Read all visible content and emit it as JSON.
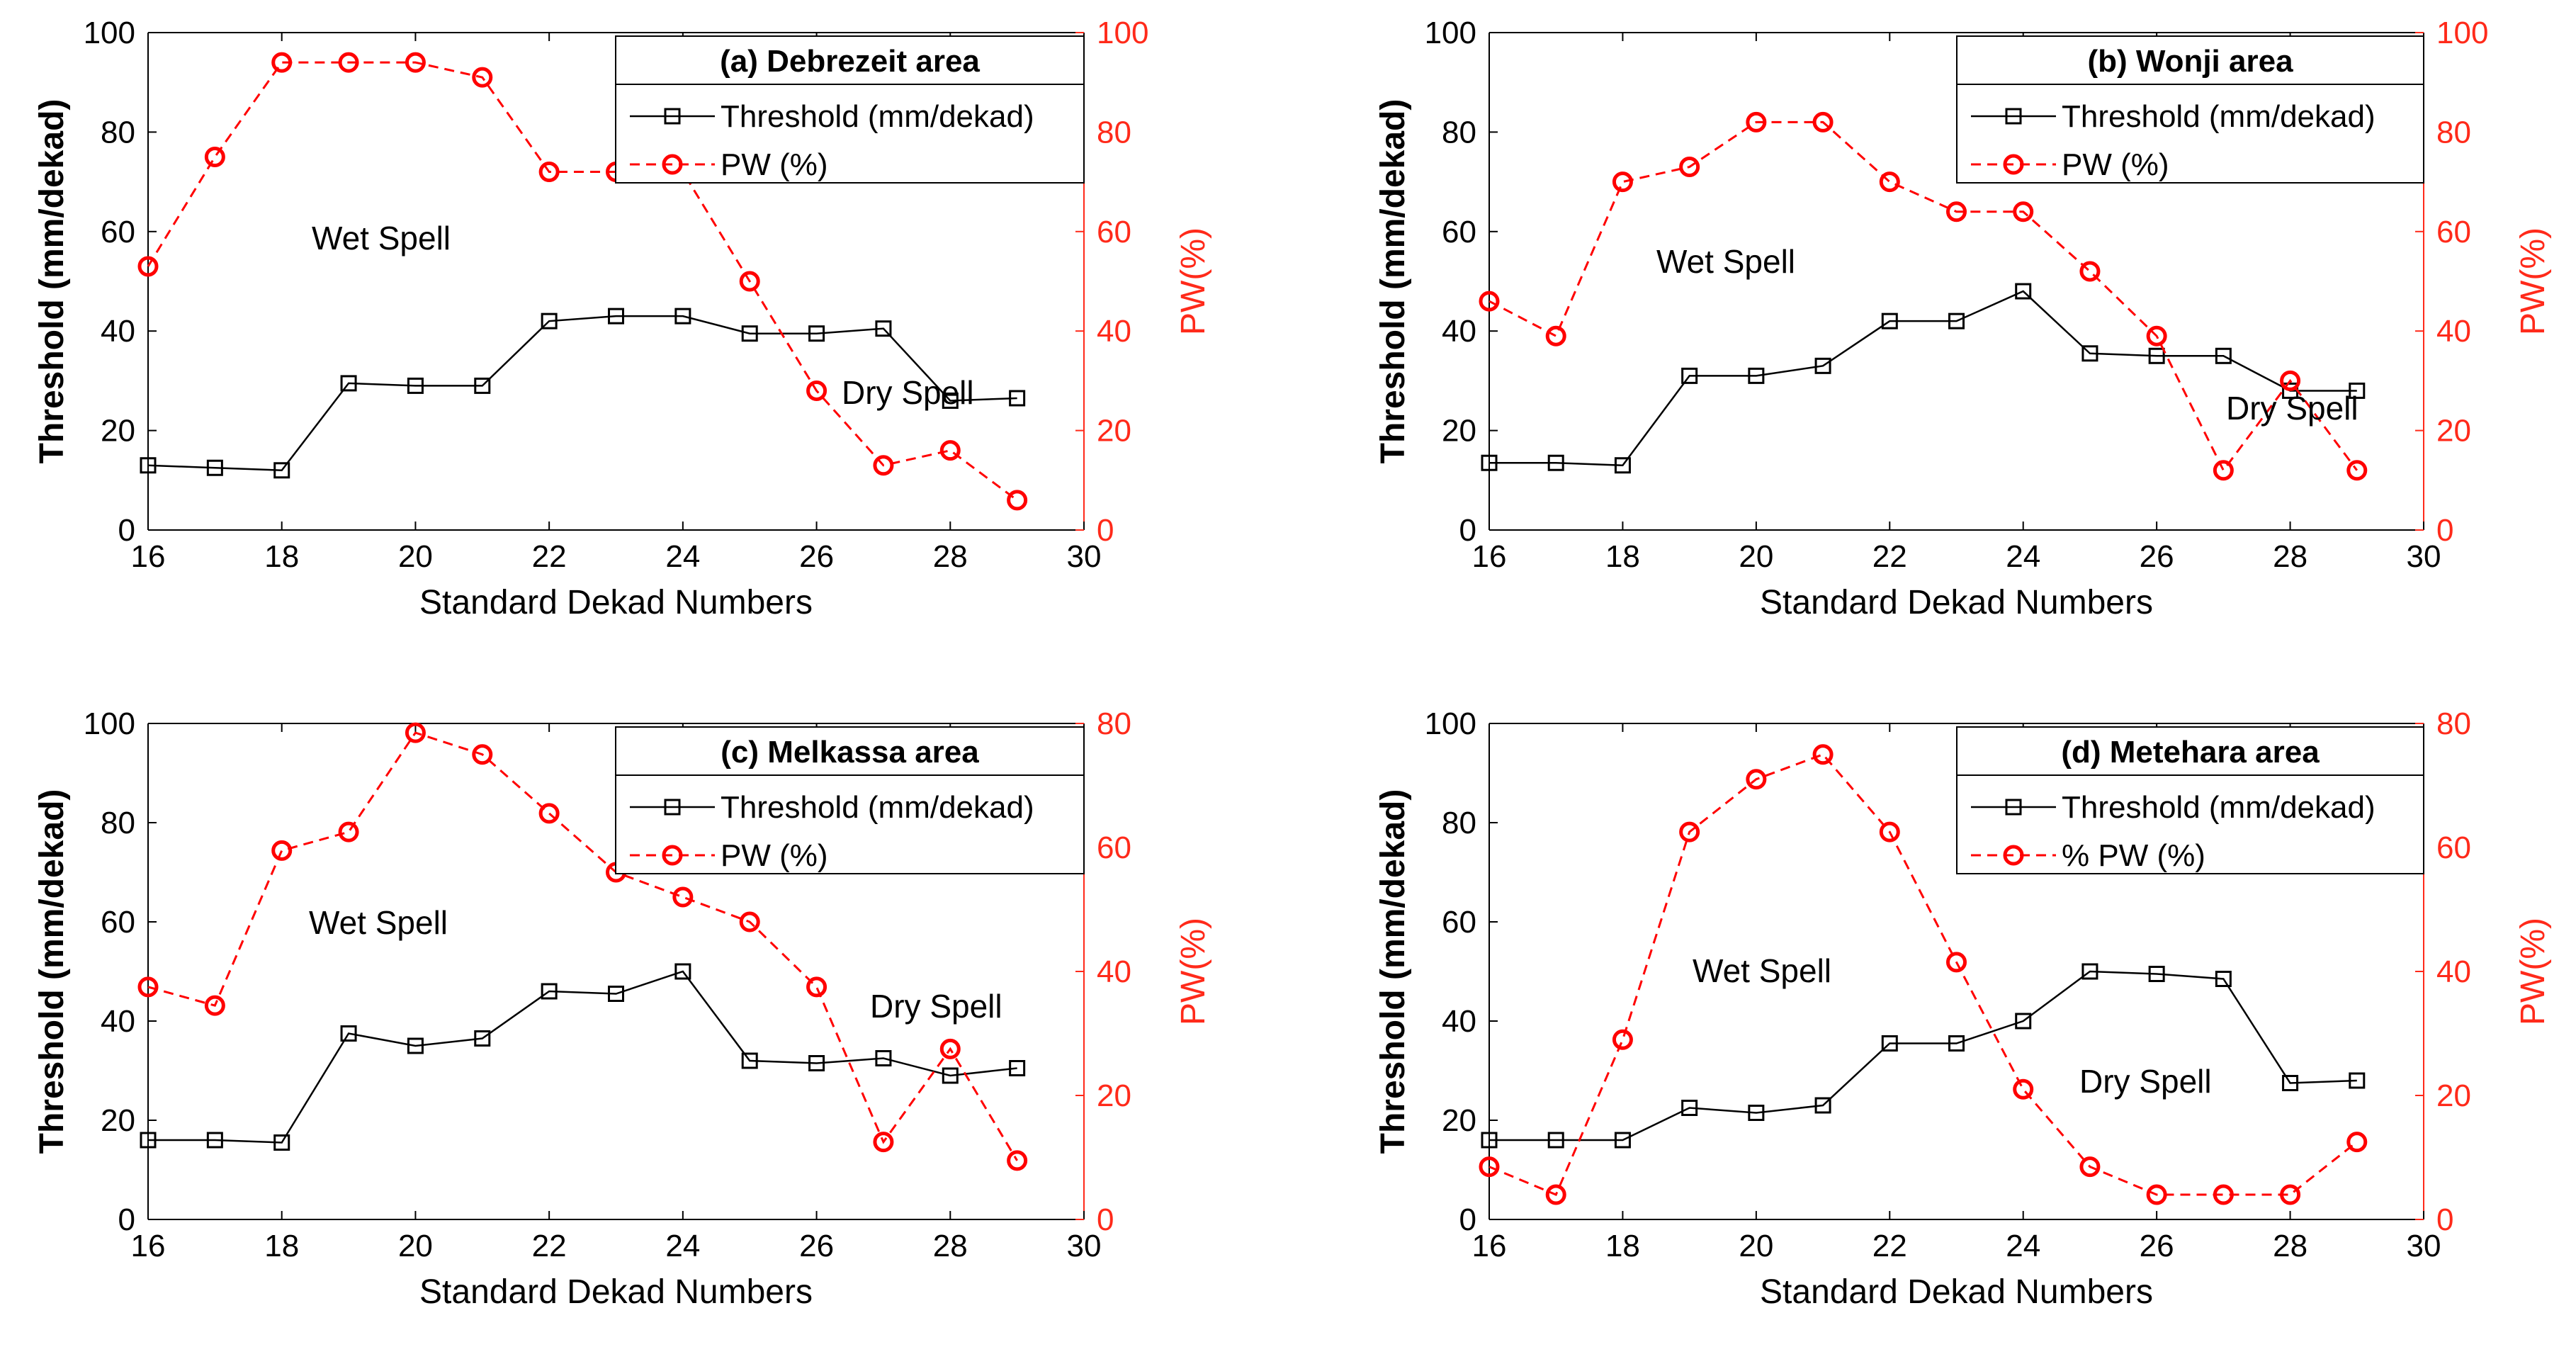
{
  "figure": {
    "colors": {
      "threshold": "#000000",
      "pw": "#ff0000",
      "axis_left": "#000000",
      "axis_right": "#ff2a1a"
    }
  },
  "chart_data": [
    {
      "panel": "a",
      "type": "line",
      "title": "(a) Debrezeit area",
      "xlabel": "Standard Dekad Numbers",
      "ylabel": "Threshold (mm/dekad)",
      "y2label": "PW(%)",
      "xlim": [
        16,
        30
      ],
      "xticks": [
        16,
        18,
        20,
        22,
        24,
        26,
        28,
        30
      ],
      "ylim": [
        0,
        100
      ],
      "yticks": [
        0,
        20,
        40,
        60,
        80,
        100
      ],
      "y2lim": [
        0,
        100
      ],
      "y2ticks": [
        0,
        20,
        40,
        60,
        80,
        100
      ],
      "grid": false,
      "legend_position": "top-right",
      "series": [
        {
          "name": "Threshold (mm/dekad)",
          "axis": "left",
          "color": "#000000",
          "marker": "square",
          "line": "solid",
          "x": [
            16,
            17,
            18,
            19,
            20,
            21,
            22,
            23,
            24,
            25,
            26,
            27,
            28,
            29
          ],
          "values": [
            13,
            12.5,
            12,
            29.5,
            29,
            29,
            42,
            43,
            43,
            39.5,
            39.5,
            40.5,
            26,
            26.5
          ]
        },
        {
          "name": "PW (%)",
          "axis": "right",
          "color": "#ff0000",
          "marker": "circle",
          "line": "dashed",
          "x": [
            16,
            17,
            18,
            19,
            20,
            21,
            22,
            23,
            24,
            25,
            26,
            27,
            28,
            29
          ],
          "values": [
            53,
            75,
            94,
            94,
            94,
            91,
            72,
            72,
            72,
            50,
            28,
            13,
            16,
            6
          ]
        }
      ],
      "annotations": [
        "Wet Spell",
        "Dry Spell"
      ]
    },
    {
      "panel": "b",
      "type": "line",
      "title": "(b) Wonji area",
      "xlabel": "Standard Dekad Numbers",
      "ylabel": "Threshold (mm/dekad)",
      "y2label": "PW(%)",
      "xlim": [
        16,
        30
      ],
      "xticks": [
        16,
        18,
        20,
        22,
        24,
        26,
        28,
        30
      ],
      "ylim": [
        0,
        100
      ],
      "yticks": [
        0,
        20,
        40,
        60,
        80,
        100
      ],
      "y2lim": [
        0,
        100
      ],
      "y2ticks": [
        0,
        20,
        40,
        60,
        80,
        100
      ],
      "grid": false,
      "legend_position": "top-right",
      "series": [
        {
          "name": "Threshold (mm/dekad)",
          "axis": "left",
          "color": "#000000",
          "marker": "square",
          "line": "solid",
          "x": [
            16,
            17,
            18,
            19,
            20,
            21,
            22,
            23,
            24,
            25,
            26,
            27,
            28,
            29
          ],
          "values": [
            13.5,
            13.5,
            13,
            31,
            31,
            33,
            42,
            42,
            48,
            35.5,
            35,
            35,
            28,
            28
          ]
        },
        {
          "name": "PW (%)",
          "axis": "right",
          "color": "#ff0000",
          "marker": "circle",
          "line": "dashed",
          "x": [
            16,
            17,
            18,
            19,
            20,
            21,
            22,
            23,
            24,
            25,
            26,
            27,
            28,
            29
          ],
          "values": [
            46,
            39,
            70,
            73,
            82,
            82,
            70,
            64,
            64,
            52,
            39,
            12,
            30,
            12
          ]
        }
      ],
      "annotations": [
        "Wet Spell",
        "Dry Spell"
      ]
    },
    {
      "panel": "c",
      "type": "line",
      "title": "(c) Melkassa area",
      "xlabel": "Standard Dekad Numbers",
      "ylabel": "Threshold (mm/dekad)",
      "y2label": "PW(%)",
      "xlim": [
        16,
        30
      ],
      "xticks": [
        16,
        18,
        20,
        22,
        24,
        26,
        28,
        30
      ],
      "ylim": [
        0,
        100
      ],
      "yticks": [
        0,
        20,
        40,
        60,
        80,
        100
      ],
      "y2lim": [
        0,
        80
      ],
      "y2ticks": [
        0,
        20,
        40,
        60,
        80
      ],
      "grid": false,
      "legend_position": "top-right",
      "series": [
        {
          "name": "Threshold (mm/dekad)",
          "axis": "left",
          "color": "#000000",
          "marker": "square",
          "line": "solid",
          "x": [
            16,
            17,
            18,
            19,
            20,
            21,
            22,
            23,
            24,
            25,
            26,
            27,
            28,
            29
          ],
          "values": [
            16,
            16,
            15.5,
            37.5,
            35,
            36.5,
            46,
            45.5,
            50,
            32,
            31.5,
            32.5,
            29,
            30.5
          ]
        },
        {
          "name": "PW (%)",
          "axis": "right",
          "color": "#ff0000",
          "marker": "circle",
          "line": "dashed",
          "x": [
            16,
            17,
            18,
            19,
            20,
            21,
            22,
            23,
            24,
            25,
            26,
            27,
            28,
            29
          ],
          "values": [
            37.5,
            34.5,
            59.5,
            62.5,
            78.5,
            75,
            65.5,
            56,
            52,
            48,
            37.5,
            12.5,
            27.5,
            9.5
          ]
        }
      ],
      "annotations": [
        "Wet Spell",
        "Dry Spell"
      ]
    },
    {
      "panel": "d",
      "type": "line",
      "title": "(d) Metehara area",
      "xlabel": "Standard Dekad Numbers",
      "ylabel": "Threshold (mm/dekad)",
      "y2label": "PW(%)",
      "xlim": [
        16,
        30
      ],
      "xticks": [
        16,
        18,
        20,
        22,
        24,
        26,
        28,
        30
      ],
      "ylim": [
        0,
        100
      ],
      "yticks": [
        0,
        20,
        40,
        60,
        80,
        100
      ],
      "y2lim": [
        0,
        80
      ],
      "y2ticks": [
        0,
        20,
        40,
        60,
        80
      ],
      "grid": false,
      "legend_position": "top-right",
      "series": [
        {
          "name": "Threshold (mm/dekad)",
          "axis": "left",
          "color": "#000000",
          "marker": "square",
          "line": "solid",
          "x": [
            16,
            17,
            18,
            19,
            20,
            21,
            22,
            23,
            24,
            25,
            26,
            27,
            28,
            29
          ],
          "values": [
            16,
            16,
            16,
            22.5,
            21.5,
            23,
            35.5,
            35.5,
            40,
            50,
            49.5,
            48.5,
            27.5,
            28
          ]
        },
        {
          "name": "% PW (%)",
          "axis": "right",
          "color": "#ff0000",
          "marker": "circle",
          "line": "dashed",
          "x": [
            16,
            17,
            18,
            19,
            20,
            21,
            22,
            23,
            24,
            25,
            26,
            27,
            28,
            29
          ],
          "values": [
            8.5,
            4,
            29,
            62.5,
            71,
            75,
            62.5,
            41.5,
            21,
            8.5,
            4,
            4,
            4,
            12.5
          ]
        }
      ],
      "annotations": [
        "Wet Spell",
        "Dry Spell"
      ]
    }
  ]
}
